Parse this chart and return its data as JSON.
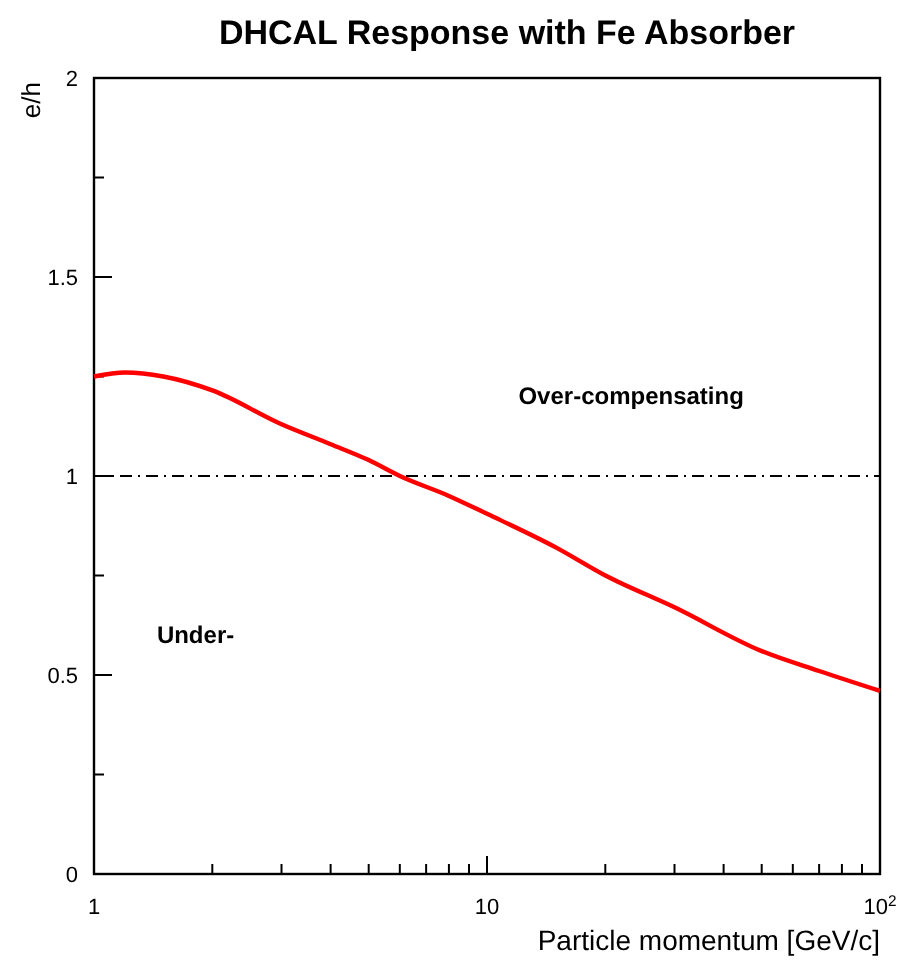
{
  "chart_data": {
    "type": "line",
    "title": "DHCAL Response with Fe Absorber",
    "xlabel": "Particle momentum [GeV/c]",
    "ylabel": "e/h",
    "log": "x",
    "xlim": [
      1,
      100
    ],
    "ylim": [
      0,
      2
    ],
    "xticks": [
      1,
      {
        "value": 2,
        "label": null
      },
      {
        "value": 3,
        "label": null
      },
      {
        "value": 4,
        "label": null
      },
      {
        "value": 5,
        "label": null
      },
      {
        "value": 6,
        "label": null
      },
      {
        "value": 7,
        "label": null
      },
      {
        "value": 8,
        "label": null
      },
      {
        "value": 9,
        "label": null
      },
      10,
      {
        "value": 20,
        "label": null
      },
      {
        "value": 30,
        "label": null
      },
      {
        "value": 40,
        "label": null
      },
      {
        "value": 50,
        "label": null
      },
      {
        "value": 60,
        "label": null
      },
      {
        "value": 70,
        "label": null
      },
      {
        "value": 80,
        "label": null
      },
      {
        "value": 90,
        "label": null
      },
      {
        "value": 100,
        "label": "10$^{2}$"
      }
    ],
    "yticks": [
      0,
      {
        "value": 0.25,
        "label": null
      },
      0.5,
      {
        "value": 0.75,
        "label": null
      },
      1,
      {
        "value": 1.25,
        "label": null
      },
      1.5,
      {
        "value": 1.75,
        "label": null
      },
      2
    ],
    "grid": false,
    "marker": "none",
    "line_style": "solid",
    "series": [
      {
        "color": "#ff0000",
        "x": [
          1,
          1.2,
          1.5,
          2,
          3,
          4,
          5,
          6,
          8,
          10,
          15,
          20,
          30,
          50,
          70,
          100
        ],
        "values": [
          1.25,
          1.26,
          1.25,
          1.215,
          1.13,
          1.08,
          1.04,
          1.0,
          0.95,
          0.905,
          0.82,
          0.75,
          0.67,
          0.56,
          0.51,
          0.46
        ]
      }
    ],
    "ref_lines": [
      {
        "axis": "y",
        "value": 1,
        "line_style": "dashdot",
        "color": "#000000"
      }
    ],
    "annotations": [
      "Over-compensating",
      "Under-"
    ]
  }
}
